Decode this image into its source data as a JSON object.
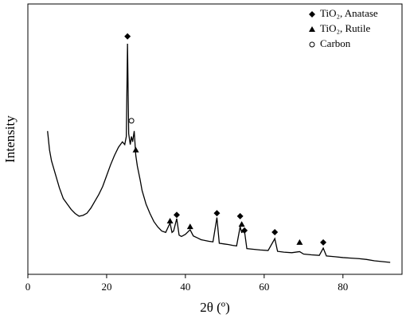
{
  "chart_data": {
    "type": "line",
    "x_label": "2θ (º)",
    "y_label": "Intensity",
    "xlim": [
      0,
      95
    ],
    "ylim": [
      0,
      100
    ],
    "xticks": [
      0,
      20,
      40,
      60,
      80
    ],
    "legend": "top-right",
    "series": [
      {
        "color": "#000000",
        "x": [
          5,
          5.5,
          6,
          7,
          8,
          9,
          10,
          11,
          12,
          13,
          14,
          15,
          16,
          17,
          18,
          19,
          20,
          21,
          22,
          23,
          24,
          24.6,
          25,
          25.3,
          25.6,
          26,
          26.3,
          26.6,
          27,
          27.4,
          27.8,
          28.5,
          29,
          30,
          31,
          32,
          33,
          34,
          35,
          36.1,
          36.6,
          37,
          37.8,
          38.4,
          39,
          40,
          41.2,
          42,
          43,
          44,
          45,
          46,
          47,
          48,
          48.6,
          50,
          51,
          52,
          53,
          53.9,
          54.3,
          55,
          55.6,
          57,
          59,
          61,
          62.7,
          63.4,
          65,
          67,
          69,
          70,
          72,
          74,
          75,
          75.8,
          78,
          80,
          82,
          84,
          86,
          88,
          90,
          92
        ],
        "values": [
          53,
          46,
          42,
          37,
          32,
          28,
          26,
          24,
          22.5,
          21.5,
          21.8,
          22.6,
          24.5,
          27,
          29.5,
          32.5,
          36.5,
          40.5,
          44,
          47,
          49,
          48,
          51,
          85.3,
          52,
          48,
          51,
          49,
          53,
          44,
          40,
          35,
          31,
          26,
          22.5,
          19.5,
          17.5,
          16,
          15.5,
          19,
          15.5,
          16,
          20.6,
          14.5,
          14,
          14.8,
          16.5,
          14.2,
          13.5,
          12.8,
          12.5,
          12.2,
          12,
          21,
          11.5,
          11.2,
          11,
          10.7,
          10.5,
          17.6,
          15.5,
          16,
          9.5,
          9.3,
          9,
          8.8,
          13.2,
          8.5,
          8.2,
          8,
          8.4,
          7.5,
          7.2,
          7,
          9.7,
          6.8,
          6.5,
          6.2,
          6,
          5.8,
          5.5,
          5,
          4.7,
          4.4
        ]
      },
      {
        "name": "TiO₂, Anatase",
        "marker": "diamond",
        "color": "#000000",
        "x": [
          25.3,
          37.8,
          48,
          53.9,
          55,
          62.7,
          75
        ],
        "values": [
          88,
          22,
          22.6,
          21.5,
          16.2,
          15.6,
          11.8
        ]
      },
      {
        "name": "TiO₂, Rutile",
        "marker": "triangle",
        "color": "#000000",
        "x": [
          27.4,
          36.1,
          41.2,
          54.3,
          69
        ],
        "values": [
          46,
          19.7,
          17.6,
          18.5,
          11.8
        ]
      },
      {
        "name": "Carbon",
        "marker": "circle",
        "color": "#000000",
        "x": [
          26.3
        ],
        "values": [
          56.8
        ]
      }
    ]
  }
}
